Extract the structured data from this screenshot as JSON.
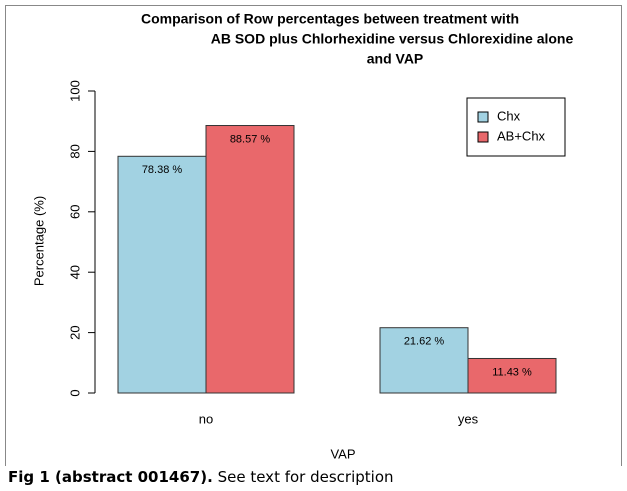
{
  "chart_data": {
    "type": "bar",
    "title": [
      "Comparison of Row percentages between treatment with",
      "AB SOD plus Chlorhexidine versus Chlorexidine alone",
      "and VAP"
    ],
    "x_label": "VAP",
    "y_label": "Percentage (%)",
    "categories": [
      "no",
      "yes"
    ],
    "series": [
      {
        "name": "Chx",
        "color": "#a2d2e2",
        "values": [
          78.38,
          21.62
        ],
        "value_labels": [
          "78.38 %",
          "21.62 %"
        ]
      },
      {
        "name": "AB+Chx",
        "color": "#e9686b",
        "values": [
          88.57,
          11.43
        ],
        "value_labels": [
          "88.57 %",
          "11.43 %"
        ]
      }
    ],
    "ylim": [
      0,
      100
    ],
    "yticks": [
      0,
      20,
      40,
      60,
      80,
      100
    ],
    "legend": "top-right"
  },
  "caption": {
    "label": "Fig 1 (abstract 001467).",
    "text": "See text for description"
  }
}
